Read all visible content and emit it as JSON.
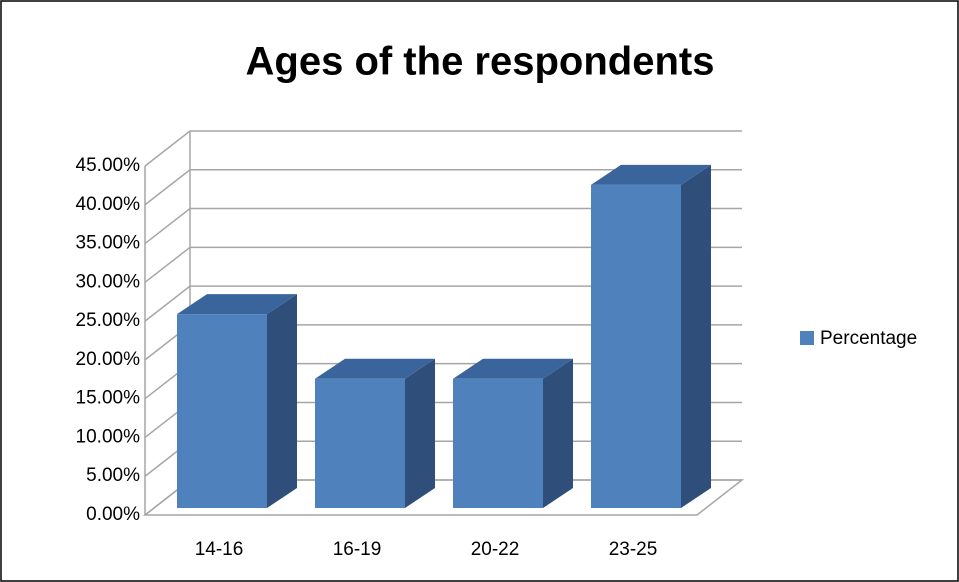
{
  "chart_data": {
    "type": "bar3d",
    "title": "Ages of the respondents",
    "categories": [
      "14-16",
      "16-19",
      "20-22",
      "23-25"
    ],
    "series": [
      {
        "name": "Percentage",
        "color": "#4f81bd",
        "values": [
          25,
          16.67,
          16.67,
          41.67
        ]
      }
    ],
    "ylim": [
      0,
      45
    ],
    "yticks": [
      {
        "value": 0,
        "label": "0.00%"
      },
      {
        "value": 5,
        "label": "5.00%"
      },
      {
        "value": 10,
        "label": "10.00%"
      },
      {
        "value": 15,
        "label": "15.00%"
      },
      {
        "value": 20,
        "label": "20.00%"
      },
      {
        "value": 25,
        "label": "25.00%"
      },
      {
        "value": 30,
        "label": "30.00%"
      },
      {
        "value": 35,
        "label": "35.00%"
      },
      {
        "value": 40,
        "label": "40.00%"
      },
      {
        "value": 45,
        "label": "45.00%"
      }
    ],
    "grid": true,
    "legend": "right"
  }
}
